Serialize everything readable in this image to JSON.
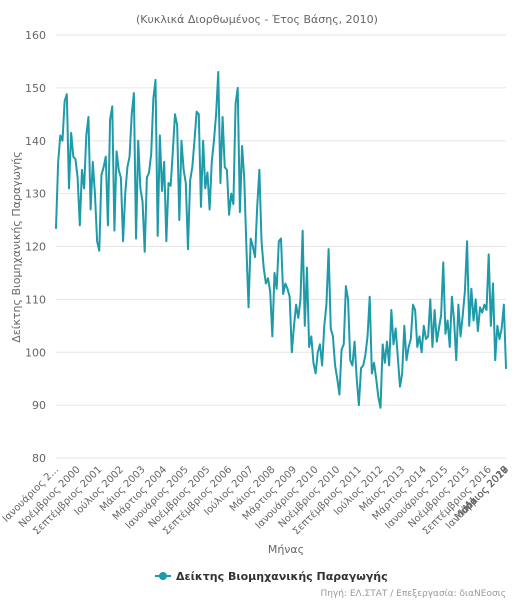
{
  "chart_data": {
    "type": "line",
    "title": "",
    "subtitle": "(Κυκλικά Διορθωμένος - Έτος Βάσης, 2010)",
    "xlabel": "Μήνας",
    "ylabel": "Δείκτης Βιομηχανικής Παραγωγής",
    "ylim": [
      80,
      160
    ],
    "yticks": [
      80,
      90,
      100,
      110,
      120,
      130,
      140,
      150,
      160
    ],
    "grid": true,
    "legend_position": "bottom-center",
    "series_color": "#1f9aa8",
    "x_tick_labels": [
      "Ιανουάριος 2...",
      "Νοέμβριος 2000",
      "Σεπτέμβριος 2001",
      "Ιούλιος 2002",
      "Μάιος 2003",
      "Μάρτιος 2004",
      "Ιανουάριος 2005",
      "Νοέμβριος 2005",
      "Σεπτέμβριος 2006",
      "Ιούλιος 2007",
      "Μάιος 2008",
      "Μάρτιος 2009",
      "Ιανουάριος 2010",
      "Νοέμβριος 2010",
      "Σεπτέμβριος 2011",
      "Ιούλιος 2012",
      "Μάιος 2013",
      "Μάρτιος 2014",
      "Ιανουάριος 2015",
      "Νοέμβριος 2015",
      "Σεπτέμβριος 2016",
      "Ιούλιος 2017",
      "Μάιος 2018",
      "Μάρτιος 2019",
      "Ιανουάριος 2020"
    ],
    "tick_step_months": 10,
    "series": [
      {
        "name": "Δείκτης Βιομηχανικής Παραγωγής",
        "values": [
          123.5,
          136.0,
          141.0,
          140.0,
          147.5,
          148.8,
          131.0,
          141.5,
          137.0,
          136.5,
          133.0,
          124.0,
          134.5,
          131.0,
          141.0,
          144.5,
          127.0,
          136.0,
          130.0,
          121.0,
          119.2,
          133.5,
          135.0,
          137.0,
          124.0,
          144.0,
          146.5,
          123.0,
          138.0,
          134.5,
          133.0,
          121.0,
          130.0,
          135.0,
          137.0,
          145.0,
          149.0,
          121.5,
          140.0,
          131.0,
          128.5,
          119.0,
          133.0,
          134.0,
          137.5,
          148.0,
          151.5,
          122.0,
          141.0,
          130.5,
          136.0,
          121.0,
          132.0,
          131.5,
          138.0,
          145.0,
          143.0,
          125.0,
          140.0,
          134.5,
          132.0,
          119.5,
          132.5,
          135.0,
          140.0,
          145.5,
          145.0,
          127.5,
          140.0,
          131.0,
          134.0,
          127.0,
          136.0,
          140.0,
          145.0,
          153.0,
          132.0,
          144.5,
          135.0,
          134.5,
          126.0,
          130.0,
          128.0,
          147.0,
          150.0,
          126.5,
          139.0,
          133.0,
          120.0,
          108.5,
          121.5,
          120.0,
          118.0,
          127.5,
          134.5,
          121.0,
          116.0,
          113.0,
          114.0,
          111.5,
          103.0,
          115.0,
          112.0,
          121.0,
          121.5,
          111.0,
          113.0,
          112.0,
          110.5,
          100.0,
          105.0,
          109.0,
          106.5,
          110.0,
          123.0,
          105.0,
          116.0,
          101.0,
          103.0,
          98.0,
          96.0,
          100.0,
          101.5,
          97.5,
          105.0,
          109.0,
          119.5,
          104.5,
          103.0,
          97.5,
          95.0,
          92.0,
          100.5,
          101.5,
          112.5,
          110.0,
          98.5,
          97.5,
          102.0,
          95.0,
          90.0,
          97.0,
          97.5,
          99.5,
          103.0,
          110.5,
          96.0,
          98.0,
          95.0,
          91.5,
          89.5,
          101.5,
          98.0,
          102.0,
          97.5,
          108.0,
          101.5,
          104.5,
          99.0,
          93.5,
          96.0,
          105.0,
          98.5,
          101.0,
          102.5,
          109.0,
          108.0,
          101.0,
          103.0,
          100.0,
          105.0,
          102.5,
          103.0,
          110.0,
          101.0,
          108.0,
          102.0,
          104.5,
          107.0,
          117.0,
          103.5,
          106.0,
          101.0,
          110.5,
          106.0,
          98.5,
          109.0,
          103.0,
          107.0,
          111.5,
          121.0,
          105.0,
          112.0,
          106.0,
          110.0,
          104.0,
          108.5,
          107.5,
          109.0,
          108.0,
          118.5,
          105.0,
          113.0,
          98.5,
          105.0,
          102.5,
          104.5,
          109.0,
          97.0
        ]
      }
    ]
  },
  "legend": {
    "label": "Δείκτης Βιομηχανικής Παραγωγής"
  },
  "credits": "Πηγή: ΕΛ.ΣΤΑΤ / Επεξεργασία: διαΝΕοσις"
}
